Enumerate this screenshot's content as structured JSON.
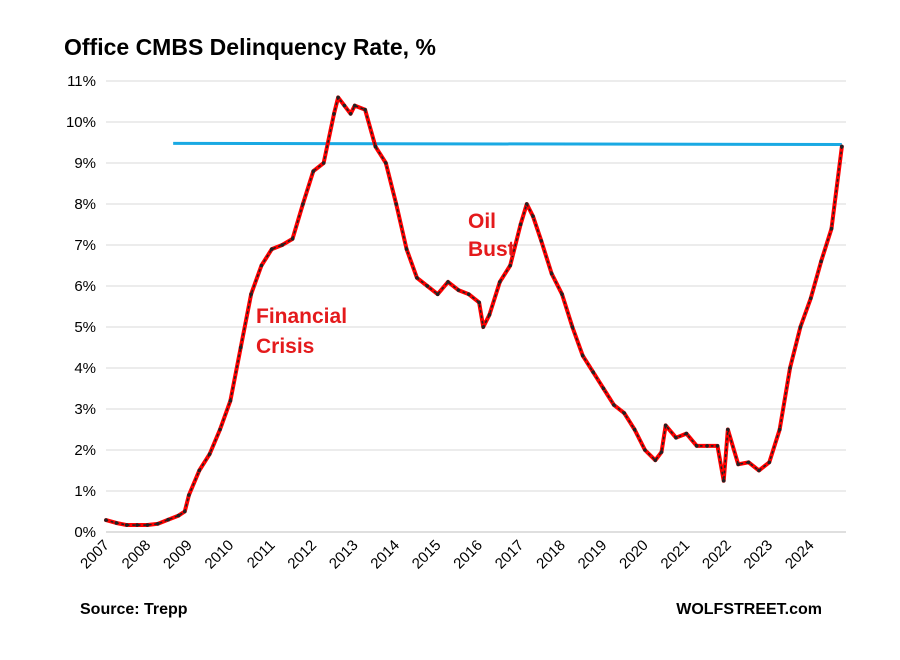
{
  "chart_data": {
    "type": "line",
    "title": "Office CMBS Delinquency Rate, %",
    "xlabel": "",
    "ylabel": "",
    "ylim": [
      0,
      11
    ],
    "xlim": [
      2007,
      2024.85
    ],
    "grid": true,
    "y_ticks": [
      "0%",
      "1%",
      "2%",
      "3%",
      "4%",
      "5%",
      "6%",
      "7%",
      "8%",
      "9%",
      "10%",
      "11%"
    ],
    "x_ticks": [
      "2007",
      "2008",
      "2009",
      "2010",
      "2011",
      "2012",
      "2013",
      "2014",
      "2015",
      "2016",
      "2017",
      "2018",
      "2019",
      "2020",
      "2021",
      "2022",
      "2023",
      "2024"
    ],
    "series": [
      {
        "name": "Office CMBS Delinquency Rate",
        "color": "#ff0000",
        "marker_color": "#222222",
        "x": [
          2007.0,
          2007.25,
          2007.5,
          2007.75,
          2008.0,
          2008.25,
          2008.5,
          2008.75,
          2008.9,
          2009.0,
          2009.25,
          2009.5,
          2009.75,
          2010.0,
          2010.25,
          2010.5,
          2010.75,
          2011.0,
          2011.25,
          2011.5,
          2011.75,
          2012.0,
          2012.25,
          2012.5,
          2012.6,
          2012.75,
          2012.9,
          2013.0,
          2013.25,
          2013.5,
          2013.75,
          2014.0,
          2014.25,
          2014.5,
          2014.75,
          2015.0,
          2015.25,
          2015.5,
          2015.75,
          2016.0,
          2016.1,
          2016.25,
          2016.5,
          2016.75,
          2017.0,
          2017.15,
          2017.3,
          2017.5,
          2017.75,
          2018.0,
          2018.25,
          2018.5,
          2018.75,
          2019.0,
          2019.25,
          2019.5,
          2019.75,
          2020.0,
          2020.25,
          2020.4,
          2020.5,
          2020.75,
          2021.0,
          2021.25,
          2021.5,
          2021.75,
          2021.9,
          2022.0,
          2022.25,
          2022.5,
          2022.75,
          2023.0,
          2023.25,
          2023.5,
          2023.75,
          2024.0,
          2024.25,
          2024.5,
          2024.75
        ],
        "values": [
          0.29,
          0.22,
          0.17,
          0.17,
          0.17,
          0.2,
          0.3,
          0.4,
          0.5,
          0.9,
          1.5,
          1.9,
          2.5,
          3.2,
          4.5,
          5.8,
          6.5,
          6.9,
          7.0,
          7.15,
          8.0,
          8.8,
          9.0,
          10.2,
          10.6,
          10.4,
          10.2,
          10.4,
          10.3,
          9.4,
          9.0,
          8.0,
          6.9,
          6.2,
          6.0,
          5.8,
          6.1,
          5.9,
          5.8,
          5.6,
          5.0,
          5.3,
          6.1,
          6.5,
          7.5,
          8.0,
          7.7,
          7.1,
          6.3,
          5.8,
          5.0,
          4.3,
          3.9,
          3.5,
          3.1,
          2.9,
          2.5,
          2.0,
          1.75,
          1.95,
          2.6,
          2.3,
          2.4,
          2.1,
          2.1,
          2.1,
          1.25,
          2.5,
          1.65,
          1.7,
          1.5,
          1.7,
          2.5,
          4.0,
          5.0,
          5.7,
          6.6,
          7.4,
          9.4
        ]
      },
      {
        "name": "Reference level",
        "color": "#19a9e3",
        "x": [
          2008.62,
          2024.75
        ],
        "values": [
          9.48,
          9.45
        ]
      }
    ],
    "annotations": [
      {
        "id": "financial",
        "lines": [
          "Financial",
          "Crisis"
        ]
      },
      {
        "id": "oil",
        "lines": [
          "Oil",
          "Bust"
        ]
      }
    ]
  },
  "footer": {
    "source": "Source: Trepp",
    "brand": "WOLFSTREET.com"
  }
}
